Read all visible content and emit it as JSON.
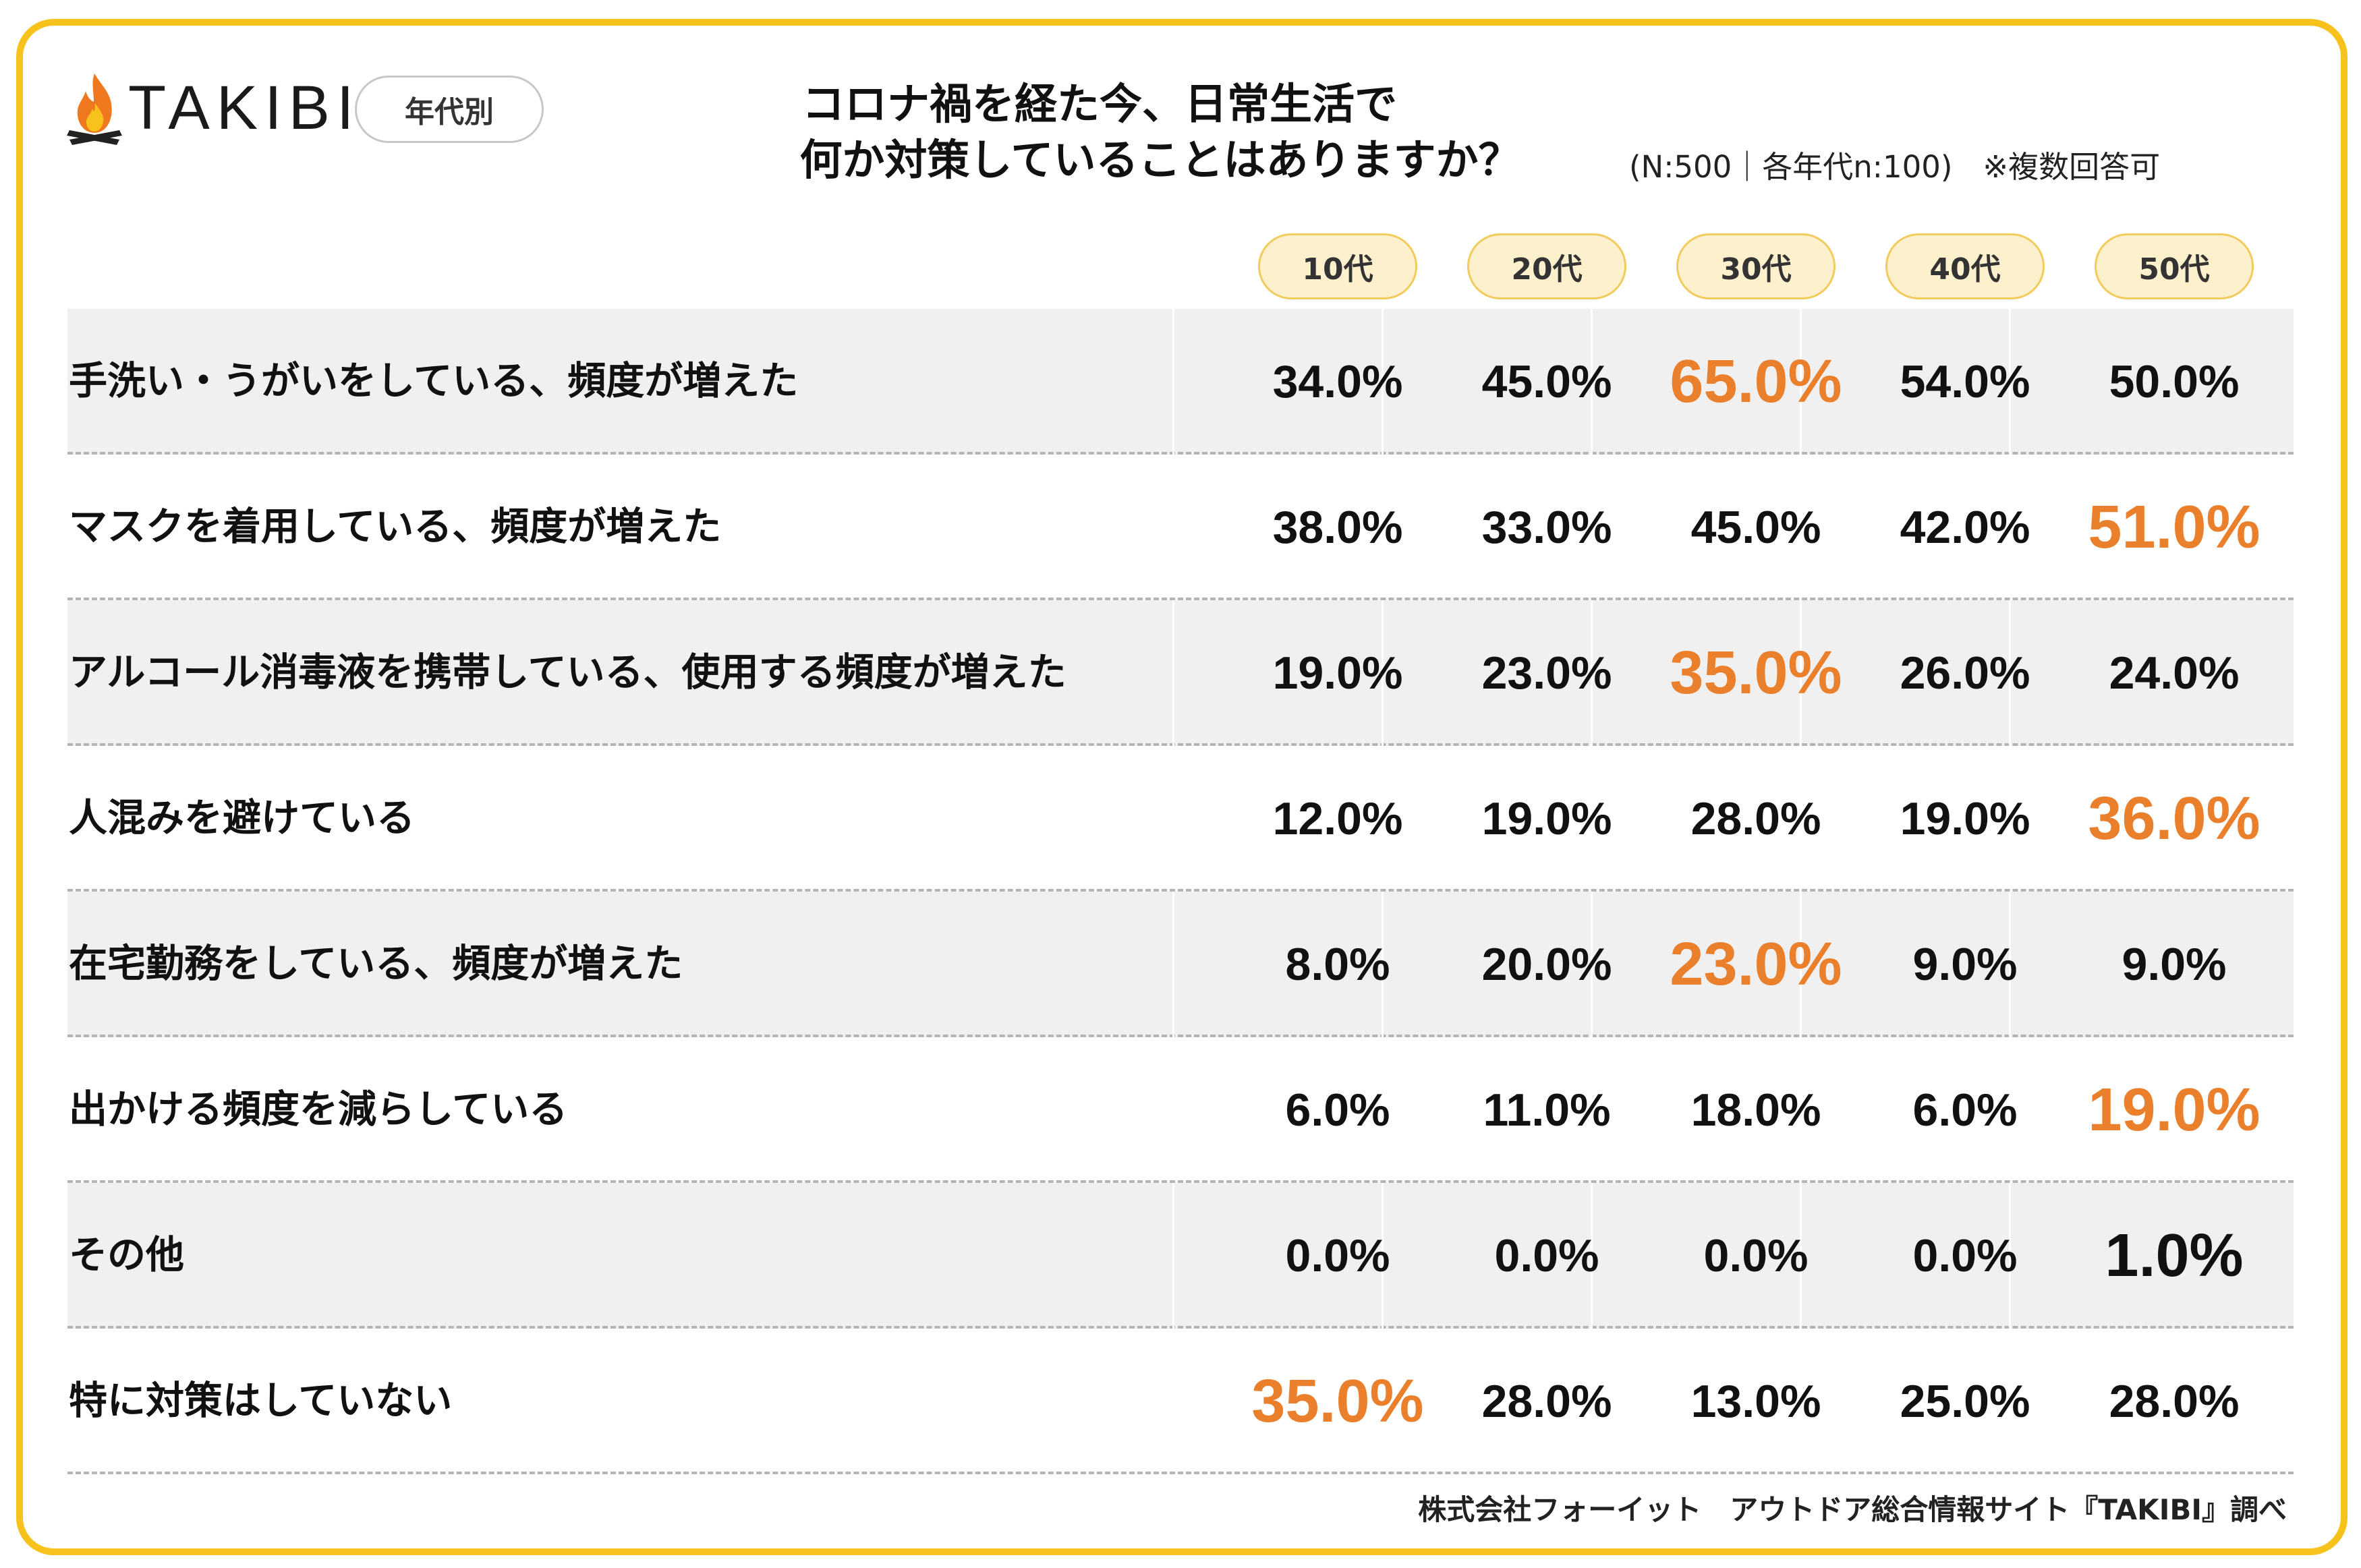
{
  "brand": {
    "name": "TAKIBI",
    "tag": "年代別"
  },
  "title": {
    "line1": "コロナ禍を経た今、日常生活で",
    "line2": "何か対策していることはありますか？",
    "note": "(N:500｜各年代n:100)　※複数回答可"
  },
  "source": "株式会社フォーイット　アウトドア総合情報サイト『TAKIBI』調べ",
  "colors": {
    "border": "#f7c21b",
    "highlight": "#ea7f2c",
    "pill_bg": "#fdf0cd",
    "row_shade": "#f0f0f0"
  },
  "chart_data": {
    "type": "table",
    "columns": [
      "10代",
      "20代",
      "30代",
      "40代",
      "50代"
    ],
    "rows": [
      {
        "label": "手洗い・うがいをしている、頻度が増えた",
        "values": [
          "34.0%",
          "45.0%",
          "65.0%",
          "54.0%",
          "50.0%"
        ],
        "highlight": 2
      },
      {
        "label": "マスクを着用している、頻度が増えた",
        "values": [
          "38.0%",
          "33.0%",
          "45.0%",
          "42.0%",
          "51.0%"
        ],
        "highlight": 4
      },
      {
        "label": "アルコール消毒液を携帯している、使用する頻度が増えた",
        "values": [
          "19.0%",
          "23.0%",
          "35.0%",
          "26.0%",
          "24.0%"
        ],
        "highlight": 2
      },
      {
        "label": "人混みを避けている",
        "values": [
          "12.0%",
          "19.0%",
          "28.0%",
          "19.0%",
          "36.0%"
        ],
        "highlight": 4
      },
      {
        "label": "在宅勤務をしている、頻度が増えた",
        "values": [
          "8.0%",
          "20.0%",
          "23.0%",
          "9.0%",
          "9.0%"
        ],
        "highlight": 2
      },
      {
        "label": "出かける頻度を減らしている",
        "values": [
          "6.0%",
          "11.0%",
          "18.0%",
          "6.0%",
          "19.0%"
        ],
        "highlight": 4
      },
      {
        "label": "その他",
        "values": [
          "0.0%",
          "0.0%",
          "0.0%",
          "0.0%",
          "1.0%"
        ],
        "highlight": 4,
        "highlight_dark": true
      },
      {
        "label": "特に対策はしていない",
        "values": [
          "35.0%",
          "28.0%",
          "13.0%",
          "25.0%",
          "28.0%"
        ],
        "highlight": 0
      }
    ]
  }
}
